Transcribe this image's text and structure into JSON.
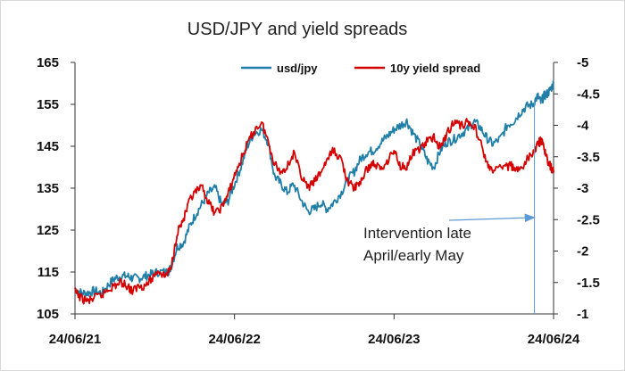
{
  "chart_data": {
    "type": "line",
    "title": "USD/JPY and yield spreads",
    "x_start": "24/06/21",
    "x_end": "24/06/24",
    "x_tick_labels": [
      "24/06/21",
      "24/06/22",
      "24/06/23",
      "24/06/24"
    ],
    "y_left": {
      "ylim": [
        105,
        165
      ],
      "ticks": [
        105,
        115,
        125,
        135,
        145,
        155,
        165
      ]
    },
    "y_right": {
      "ylim": [
        -1,
        -5
      ],
      "inverted": true,
      "ticks": [
        -1,
        -1.5,
        -2,
        -2.5,
        -3,
        -3.5,
        -4,
        -4.5,
        -5
      ]
    },
    "legend_position": "top",
    "grid": false,
    "series": [
      {
        "name": "usd/jpy",
        "axis": "left",
        "color": "#1f7fa8",
        "x": [
          0,
          0.04,
          0.08,
          0.12,
          0.17,
          0.21,
          0.25,
          0.29,
          0.33,
          0.36,
          0.4,
          0.44,
          0.48,
          0.52,
          0.58,
          0.6,
          0.64,
          0.68,
          0.72,
          0.76,
          0.8,
          0.84,
          0.88,
          0.92,
          0.96,
          1.0,
          1.04,
          1.08,
          1.12,
          1.17,
          1.21,
          1.25,
          1.29,
          1.33,
          1.37,
          1.42,
          1.46,
          1.5,
          1.54,
          1.58,
          1.62,
          1.67,
          1.71,
          1.75,
          1.79,
          1.83,
          1.87,
          1.92,
          1.96,
          2.0,
          2.04,
          2.08,
          2.12,
          2.17,
          2.21,
          2.25,
          2.29,
          2.33,
          2.37,
          2.42,
          2.46,
          2.5,
          2.54,
          2.58,
          2.62,
          2.67,
          2.71,
          2.75,
          2.79,
          2.83,
          2.87,
          2.9,
          2.92,
          2.94,
          2.96,
          2.98,
          3.0
        ],
        "values": [
          111,
          110,
          110,
          110.5,
          110,
          112,
          113.5,
          114,
          114,
          113.5,
          113.5,
          114,
          114.5,
          115,
          115,
          116,
          121,
          122,
          126,
          129,
          131.5,
          134,
          135,
          131,
          132,
          136,
          140,
          145,
          148,
          149,
          146,
          138,
          136,
          134,
          136,
          132,
          129.5,
          130,
          131.5,
          130,
          131.5,
          134,
          137,
          139,
          142,
          143.5,
          144,
          146,
          147.5,
          149,
          150,
          151,
          148,
          145,
          141.5,
          140,
          144,
          146,
          146.5,
          148,
          149,
          151,
          149.5,
          147,
          145.5,
          147,
          150,
          151,
          153,
          154.5,
          155,
          157,
          155.5,
          157,
          157.5,
          158.5,
          160
        ]
      },
      {
        "name": "10y yield spread",
        "axis": "right",
        "color": "#d40000",
        "x": [
          0,
          0.04,
          0.08,
          0.12,
          0.17,
          0.21,
          0.25,
          0.29,
          0.33,
          0.36,
          0.4,
          0.44,
          0.48,
          0.52,
          0.56,
          0.6,
          0.64,
          0.68,
          0.72,
          0.76,
          0.8,
          0.84,
          0.88,
          0.92,
          0.96,
          1.0,
          1.04,
          1.08,
          1.12,
          1.17,
          1.21,
          1.25,
          1.29,
          1.33,
          1.37,
          1.42,
          1.46,
          1.5,
          1.54,
          1.58,
          1.62,
          1.67,
          1.71,
          1.75,
          1.79,
          1.83,
          1.87,
          1.92,
          1.96,
          2.0,
          2.04,
          2.08,
          2.12,
          2.17,
          2.21,
          2.25,
          2.29,
          2.33,
          2.37,
          2.42,
          2.46,
          2.5,
          2.54,
          2.58,
          2.62,
          2.67,
          2.71,
          2.75,
          2.79,
          2.83,
          2.87,
          2.9,
          2.92,
          2.94,
          2.96,
          2.98,
          3.0
        ],
        "values": [
          -1.35,
          -1.25,
          -1.2,
          -1.25,
          -1.3,
          -1.4,
          -1.45,
          -1.5,
          -1.45,
          -1.35,
          -1.45,
          -1.45,
          -1.55,
          -1.7,
          -1.6,
          -1.7,
          -2.3,
          -2.5,
          -2.8,
          -2.95,
          -3.0,
          -2.75,
          -2.6,
          -2.7,
          -2.9,
          -3.2,
          -3.45,
          -3.7,
          -3.9,
          -4.05,
          -3.75,
          -3.4,
          -3.25,
          -3.35,
          -3.55,
          -3.2,
          -3.0,
          -3.1,
          -3.25,
          -3.45,
          -3.6,
          -3.45,
          -3.1,
          -3.0,
          -3.1,
          -3.3,
          -3.4,
          -3.3,
          -3.45,
          -3.6,
          -3.35,
          -3.35,
          -3.55,
          -3.65,
          -3.75,
          -3.8,
          -3.65,
          -3.85,
          -4.05,
          -4.0,
          -4.05,
          -4.0,
          -3.75,
          -3.4,
          -3.25,
          -3.35,
          -3.35,
          -3.35,
          -3.25,
          -3.45,
          -3.55,
          -3.7,
          -3.75,
          -3.65,
          -3.45,
          -3.35,
          -3.25
        ]
      }
    ],
    "annotation": {
      "lines": [
        "Intervention late",
        "April/early May"
      ],
      "arrow_target_x": 2.88,
      "arrow_target_y": 128
    }
  }
}
